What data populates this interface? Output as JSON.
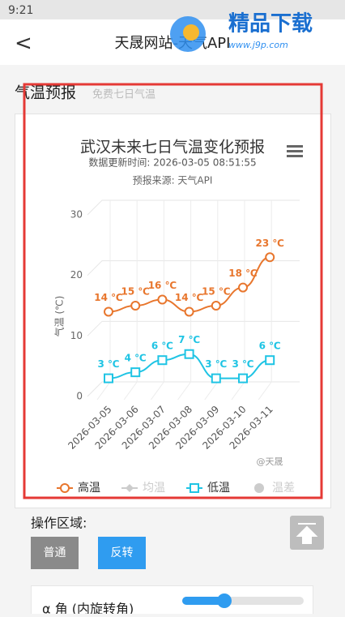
{
  "status_bar": {
    "time": "9:21"
  },
  "watermark": {
    "brand": "精品下载",
    "url": "www.j9p.com"
  },
  "header": {
    "back": "<",
    "title": "天晟网站-天气API"
  },
  "section": {
    "title": "气温预报",
    "subtitle": "免费七日气温"
  },
  "chart_data": {
    "type": "line",
    "title": "武汉未来七日气温变化预报",
    "subtitle": "数据更新时间: 2026-03-05 08:51:55",
    "source": "预报来源: 天气API",
    "credit": "@天晟",
    "y_label": "气温 (℃)",
    "categories": [
      "2026-03-05",
      "2026-03-06",
      "2026-03-07",
      "2026-03-08",
      "2026-03-09",
      "2026-03-10",
      "2026-03-11"
    ],
    "series": [
      {
        "name": "高温",
        "color": "#e8762d",
        "marker": "circle",
        "values": [
          14,
          15,
          16,
          14,
          15,
          18,
          23
        ],
        "value_labels": [
          "14 ℃",
          "15 ℃",
          "16 ℃",
          "14 ℃",
          "15 ℃",
          "18 ℃",
          "23 ℃"
        ]
      },
      {
        "name": "低温",
        "color": "#1fc4e4",
        "marker": "square",
        "values": [
          3,
          4,
          6,
          7,
          3,
          3,
          6
        ],
        "value_labels": [
          "3 ℃",
          "4 ℃",
          "6 ℃",
          "7 ℃",
          "3 ℃",
          "3 ℃",
          "6 ℃"
        ]
      }
    ],
    "inactive_series": [
      {
        "name": "均温",
        "marker": "diamond"
      },
      {
        "name": "温差",
        "marker": "circle"
      }
    ],
    "ylim": [
      0,
      30
    ],
    "yticks": [
      0,
      10,
      20,
      30
    ],
    "grid": true
  },
  "controls": {
    "title": "操作区域:",
    "buttons": [
      "普通",
      "反转"
    ],
    "slider_label": "α 角 (内旋转角)"
  }
}
